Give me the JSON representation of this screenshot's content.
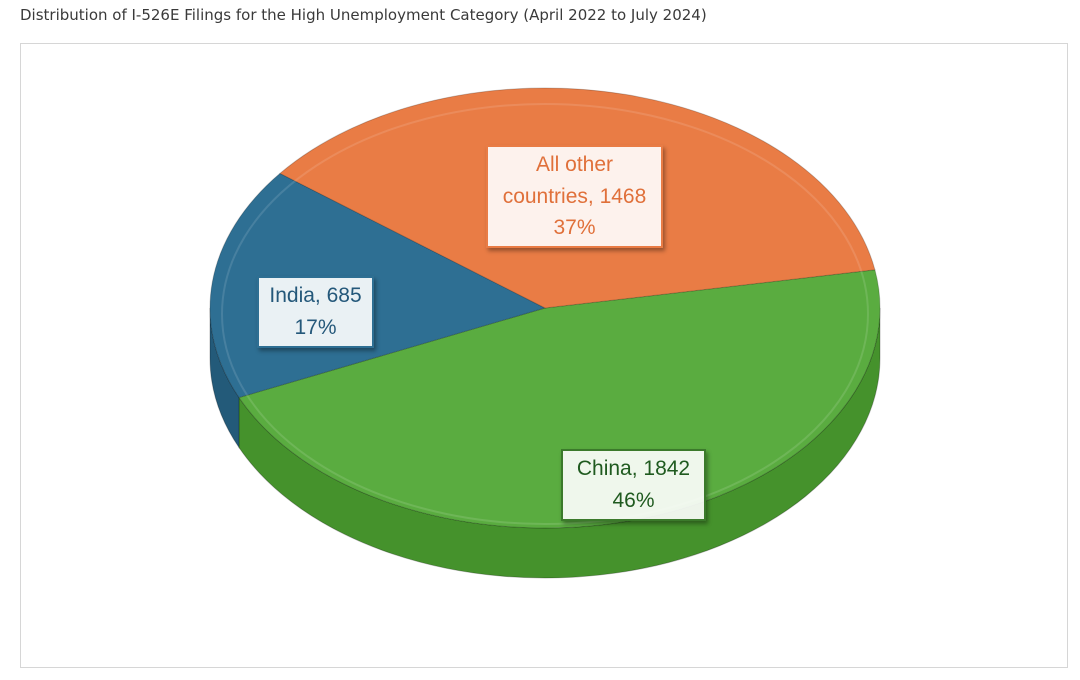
{
  "title": "Distribution of I-526E Filings for the High Unemployment Category (April 2022 to July 2024)",
  "chart_data": {
    "type": "pie",
    "title": "Distribution of I-526E Filings for the High Unemployment Category (April 2022 to July 2024)",
    "slices": [
      {
        "name": "China",
        "value": 1842,
        "percent": "46%",
        "label": "China, 1842",
        "color": "#5aac40",
        "side": "#45922c",
        "text_color": "#1f5a1f"
      },
      {
        "name": "India",
        "value": 685,
        "percent": "17%",
        "label": "India, 685",
        "color": "#2e6f93",
        "side": "#235a79",
        "text_color": "#24587a"
      },
      {
        "name": "All other countries",
        "value": 1468,
        "percent": "37%",
        "label_lines": [
          "All other",
          "countries, 1468"
        ],
        "color": "#e97c45",
        "side": "#c9652f",
        "text_color": "#e0703a"
      }
    ],
    "style": "3d-pie",
    "legend": "none"
  }
}
